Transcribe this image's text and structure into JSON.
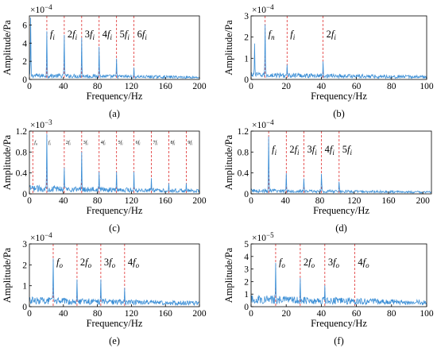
{
  "figure": {
    "panels": [
      {
        "label": "(a)",
        "exponent_base": "×10",
        "exponent_power": "−4",
        "xlabel": "Frequency/Hz",
        "ylabel": "Amplitude/Pa",
        "xlim": [
          0,
          200
        ],
        "ylim": [
          0,
          7
        ],
        "xticks": [
          "0",
          "40",
          "80",
          "120",
          "160",
          "200"
        ],
        "yticks": [
          "0",
          "2",
          "4",
          "6"
        ],
        "ytick_values": [
          0,
          2,
          4,
          6
        ],
        "markers": [
          {
            "x": 20.5,
            "coef": "",
            "sub": "i"
          },
          {
            "x": 41,
            "coef": "2",
            "sub": "i"
          },
          {
            "x": 61.5,
            "coef": "3",
            "sub": "i"
          },
          {
            "x": 82,
            "coef": "4",
            "sub": "i"
          },
          {
            "x": 102.5,
            "coef": "5",
            "sub": "i"
          },
          {
            "x": 123,
            "coef": "6",
            "sub": "i"
          }
        ],
        "peaks": [
          [
            1.5,
            6.8
          ],
          [
            20.5,
            5.3
          ],
          [
            41,
            4.9
          ],
          [
            61.5,
            4.6
          ],
          [
            82,
            3.6
          ],
          [
            102.5,
            2.3
          ],
          [
            123,
            1.3
          ]
        ],
        "baseline": 0.5
      },
      {
        "label": "(b)",
        "exponent_base": "×10",
        "exponent_power": "−4",
        "xlabel": "Frequency/Hz",
        "ylabel": "Amplitude/Pa",
        "xlim": [
          0,
          100
        ],
        "ylim": [
          0,
          3
        ],
        "xticks": [
          "0",
          "20",
          "40",
          "60",
          "80",
          "100"
        ],
        "yticks": [
          "0",
          "1",
          "2",
          "3"
        ],
        "ytick_values": [
          0,
          1,
          2,
          3
        ],
        "markers": [
          {
            "x": 8,
            "coef": "",
            "sub": "n"
          },
          {
            "x": 20.5,
            "coef": "",
            "sub": "i"
          },
          {
            "x": 41,
            "coef": "2",
            "sub": "i"
          }
        ],
        "peaks": [
          [
            2,
            1.7
          ],
          [
            8,
            2.6
          ],
          [
            20.5,
            0.7
          ],
          [
            41,
            0.85
          ]
        ],
        "baseline": 0.25
      },
      {
        "label": "(c)",
        "exponent_base": "×10",
        "exponent_power": "−3",
        "xlabel": "Frequency/Hz",
        "ylabel": "Amplitude/Pa",
        "xlim": [
          0,
          200
        ],
        "ylim": [
          0,
          1.2
        ],
        "xticks": [
          "0",
          "40",
          "80",
          "120",
          "160",
          "200"
        ],
        "yticks": [
          "0",
          "0.4",
          "0.8",
          "1.2"
        ],
        "ytick_values": [
          0,
          0.4,
          0.8,
          1.2
        ],
        "small_labels": true,
        "markers": [
          {
            "x": 4,
            "coef": "",
            "sub": "n"
          },
          {
            "x": 20.5,
            "coef": "",
            "sub": "i"
          },
          {
            "x": 41,
            "coef": "2",
            "sub": "i"
          },
          {
            "x": 61.5,
            "coef": "3",
            "sub": "i"
          },
          {
            "x": 82,
            "coef": "4",
            "sub": "i"
          },
          {
            "x": 102.5,
            "coef": "5",
            "sub": "i"
          },
          {
            "x": 123,
            "coef": "6",
            "sub": "i"
          },
          {
            "x": 143.5,
            "coef": "7",
            "sub": "i"
          },
          {
            "x": 164,
            "coef": "8",
            "sub": "i"
          },
          {
            "x": 184.5,
            "coef": "9",
            "sub": "i"
          }
        ],
        "peaks": [
          [
            20.5,
            1.15
          ],
          [
            41,
            0.5
          ],
          [
            61.5,
            0.8
          ],
          [
            82,
            0.42
          ],
          [
            102.5,
            0.42
          ],
          [
            123,
            0.42
          ],
          [
            143.5,
            0.3
          ],
          [
            164,
            0.2
          ],
          [
            184.5,
            0.2
          ]
        ],
        "baseline": 0.12
      },
      {
        "label": "(d)",
        "exponent_base": "×10",
        "exponent_power": "−4",
        "xlabel": "Frequency/Hz",
        "ylabel": "Amplitude/Pa",
        "xlim": [
          0,
          210
        ],
        "ylim": [
          0,
          1.2
        ],
        "xticks": [
          "0",
          "40",
          "80",
          "120",
          "160",
          "200"
        ],
        "yticks": [
          "0",
          "0.4",
          "0.8",
          "1.2"
        ],
        "ytick_values": [
          0,
          0.4,
          0.8,
          1.2
        ],
        "markers": [
          {
            "x": 20.5,
            "coef": "",
            "sub": "i"
          },
          {
            "x": 41,
            "coef": "2",
            "sub": "i"
          },
          {
            "x": 61.5,
            "coef": "3",
            "sub": "i"
          },
          {
            "x": 82,
            "coef": "4",
            "sub": "i"
          },
          {
            "x": 102.5,
            "coef": "5",
            "sub": "i"
          }
        ],
        "peaks": [
          [
            20.5,
            1.1
          ],
          [
            41,
            0.4
          ],
          [
            61.5,
            0.3
          ],
          [
            82,
            0.4
          ],
          [
            102.5,
            0.25
          ]
        ],
        "baseline": 0.07
      },
      {
        "label": "(e)",
        "exponent_base": "×10",
        "exponent_power": "−4",
        "xlabel": "Frequency/Hz",
        "ylabel": "Amplitude/Pa",
        "xlim": [
          0,
          200
        ],
        "ylim": [
          0,
          3
        ],
        "xticks": [
          "0",
          "40",
          "80",
          "120",
          "160",
          "200"
        ],
        "yticks": [
          "0",
          "1",
          "2",
          "3"
        ],
        "ytick_values": [
          0,
          1,
          2,
          3
        ],
        "markers": [
          {
            "x": 28,
            "coef": "",
            "sub": "o"
          },
          {
            "x": 56,
            "coef": "2",
            "sub": "o"
          },
          {
            "x": 84,
            "coef": "3",
            "sub": "o"
          },
          {
            "x": 112,
            "coef": "4",
            "sub": "o"
          }
        ],
        "peaks": [
          [
            28,
            2.3
          ],
          [
            56,
            1.3
          ],
          [
            84,
            1.3
          ],
          [
            112,
            0.9
          ]
        ],
        "baseline": 0.35
      },
      {
        "label": "(f)",
        "exponent_base": "×10",
        "exponent_power": "−5",
        "xlabel": "Frequency/Hz",
        "ylabel": "Amplitude/Pa",
        "xlim": [
          0,
          100
        ],
        "ylim": [
          0,
          5
        ],
        "xticks": [
          "0",
          "20",
          "40",
          "60",
          "80",
          "100"
        ],
        "yticks": [
          "0",
          "1",
          "2",
          "3",
          "4",
          "5"
        ],
        "ytick_values": [
          0,
          1,
          2,
          3,
          4,
          5
        ],
        "markers": [
          {
            "x": 14,
            "coef": "",
            "sub": "o"
          },
          {
            "x": 28,
            "coef": "2",
            "sub": "o"
          },
          {
            "x": 42,
            "coef": "3",
            "sub": "o"
          },
          {
            "x": 59,
            "coef": "4",
            "sub": "o"
          }
        ],
        "peaks": [
          [
            14,
            3.5
          ],
          [
            28,
            2.3
          ],
          [
            42,
            1.7
          ]
        ],
        "baseline": 0.7
      }
    ]
  },
  "colors": {
    "series": "#3c8fd6",
    "marker": "#e03030",
    "axis": "#000000"
  },
  "chart_data": [
    {
      "type": "line",
      "label": "(a)",
      "xlabel": "Frequency/Hz",
      "ylabel": "Amplitude/Pa",
      "xlim": [
        0,
        200
      ],
      "ylim": [
        0,
        7
      ],
      "y_scale_note": "×10−4",
      "harmonic_lines_x": [
        20.5,
        41,
        61.5,
        82,
        102.5,
        123
      ],
      "peaks": {
        "x": [
          1.5,
          20.5,
          41,
          61.5,
          82,
          102.5,
          123
        ],
        "y": [
          6.8,
          5.3,
          4.9,
          4.6,
          3.6,
          2.3,
          1.3
        ]
      }
    },
    {
      "type": "line",
      "label": "(b)",
      "xlabel": "Frequency/Hz",
      "ylabel": "Amplitude/Pa",
      "xlim": [
        0,
        100
      ],
      "ylim": [
        0,
        3
      ],
      "y_scale_note": "×10−4",
      "harmonic_lines_x": [
        8,
        20.5,
        41
      ],
      "peaks": {
        "x": [
          2,
          8,
          20.5,
          41
        ],
        "y": [
          1.7,
          2.6,
          0.7,
          0.85
        ]
      }
    },
    {
      "type": "line",
      "label": "(c)",
      "xlabel": "Frequency/Hz",
      "ylabel": "Amplitude/Pa",
      "xlim": [
        0,
        200
      ],
      "ylim": [
        0,
        1.2
      ],
      "y_scale_note": "×10−3",
      "harmonic_lines_x": [
        4,
        20.5,
        41,
        61.5,
        82,
        102.5,
        123,
        143.5,
        164,
        184.5
      ],
      "peaks": {
        "x": [
          20.5,
          41,
          61.5,
          82,
          102.5,
          123,
          143.5,
          164,
          184.5
        ],
        "y": [
          1.15,
          0.5,
          0.8,
          0.42,
          0.42,
          0.42,
          0.3,
          0.2,
          0.2
        ]
      }
    },
    {
      "type": "line",
      "label": "(d)",
      "xlabel": "Frequency/Hz",
      "ylabel": "Amplitude/Pa",
      "xlim": [
        0,
        210
      ],
      "ylim": [
        0,
        1.2
      ],
      "y_scale_note": "×10−4",
      "harmonic_lines_x": [
        20.5,
        41,
        61.5,
        82,
        102.5
      ],
      "peaks": {
        "x": [
          20.5,
          41,
          61.5,
          82,
          102.5
        ],
        "y": [
          1.1,
          0.4,
          0.3,
          0.4,
          0.25
        ]
      }
    },
    {
      "type": "line",
      "label": "(e)",
      "xlabel": "Frequency/Hz",
      "ylabel": "Amplitude/Pa",
      "xlim": [
        0,
        200
      ],
      "ylim": [
        0,
        3
      ],
      "y_scale_note": "×10−4",
      "harmonic_lines_x": [
        28,
        56,
        84,
        112
      ],
      "peaks": {
        "x": [
          28,
          56,
          84,
          112
        ],
        "y": [
          2.3,
          1.3,
          1.3,
          0.9
        ]
      }
    },
    {
      "type": "line",
      "label": "(f)",
      "xlabel": "Frequency/Hz",
      "ylabel": "Amplitude/Pa",
      "xlim": [
        0,
        100
      ],
      "ylim": [
        0,
        5
      ],
      "y_scale_note": "×10−5",
      "harmonic_lines_x": [
        14,
        28,
        42,
        59
      ],
      "peaks": {
        "x": [
          14,
          28,
          42
        ],
        "y": [
          3.5,
          2.3,
          1.7
        ]
      }
    }
  ]
}
